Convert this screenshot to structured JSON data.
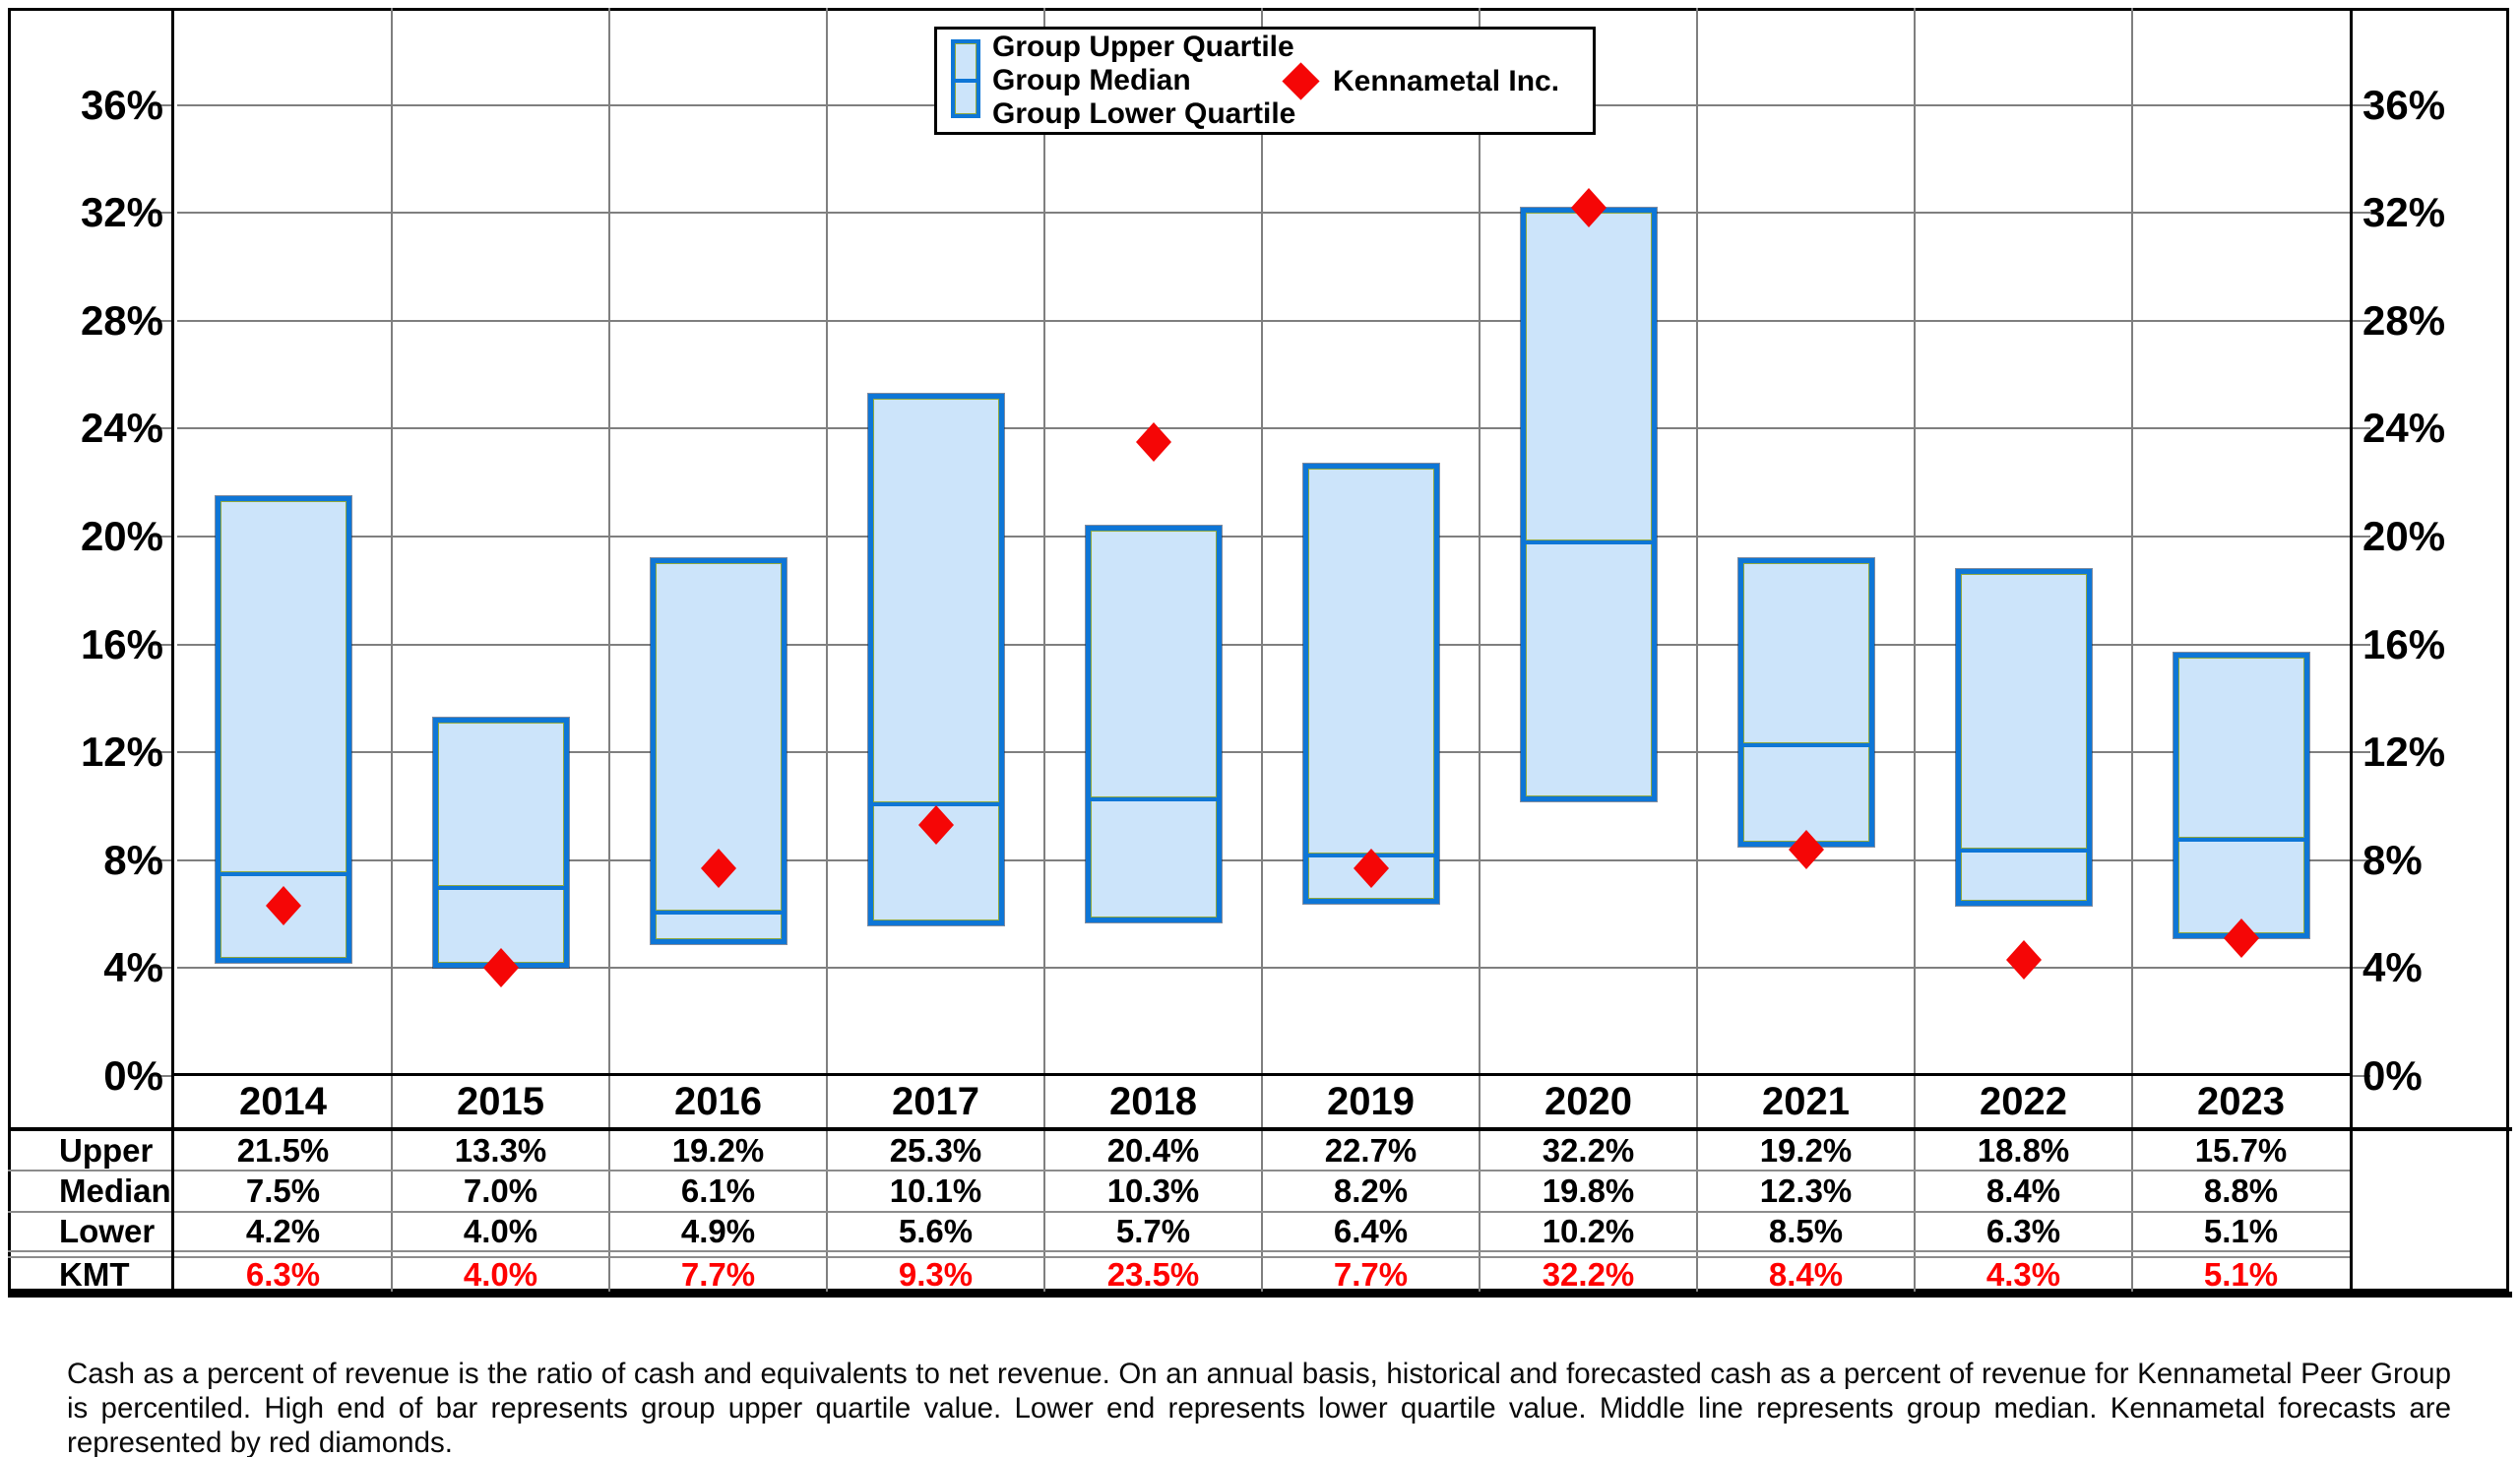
{
  "chart_data": {
    "type": "bar",
    "subtype": "floating-quartile-range",
    "categories": [
      "2014",
      "2015",
      "2016",
      "2017",
      "2018",
      "2019",
      "2020",
      "2021",
      "2022",
      "2023"
    ],
    "series": [
      {
        "name": "Group Upper Quartile",
        "values": [
          21.5,
          13.3,
          19.2,
          25.3,
          20.4,
          22.7,
          32.2,
          19.2,
          18.8,
          15.7
        ]
      },
      {
        "name": "Group Median",
        "values": [
          7.5,
          7.0,
          6.1,
          10.1,
          10.3,
          8.2,
          19.8,
          12.3,
          8.4,
          8.8
        ]
      },
      {
        "name": "Group Lower Quartile",
        "values": [
          4.2,
          4.0,
          4.9,
          5.6,
          5.7,
          6.4,
          10.2,
          8.5,
          6.3,
          5.1
        ]
      },
      {
        "name": "Kennametal Inc.",
        "marker": "diamond",
        "values": [
          6.3,
          4.0,
          7.7,
          9.3,
          23.5,
          7.7,
          32.2,
          8.4,
          4.3,
          5.1
        ]
      }
    ],
    "ylim": [
      0,
      39.6
    ],
    "yticks": [
      0,
      4,
      8,
      12,
      16,
      20,
      24,
      28,
      32,
      36
    ],
    "ytick_labels": [
      "0%",
      "4%",
      "8%",
      "12%",
      "16%",
      "20%",
      "24%",
      "28%",
      "32%",
      "36%"
    ],
    "grid": true,
    "legend_position": "top-center",
    "y_axis_sides": "both"
  },
  "legend": {
    "items": [
      "Group Upper Quartile",
      "Group Median",
      "Group Lower Quartile"
    ],
    "marker_item": "Kennametal Inc."
  },
  "table": {
    "row_labels": [
      "Upper",
      "Median",
      "Lower",
      "KMT"
    ],
    "rows": [
      [
        "21.5%",
        "13.3%",
        "19.2%",
        "25.3%",
        "20.4%",
        "22.7%",
        "32.2%",
        "19.2%",
        "18.8%",
        "15.7%"
      ],
      [
        "7.5%",
        "7.0%",
        "6.1%",
        "10.1%",
        "10.3%",
        "8.2%",
        "19.8%",
        "12.3%",
        "8.4%",
        "8.8%"
      ],
      [
        "4.2%",
        "4.0%",
        "4.9%",
        "5.6%",
        "5.7%",
        "6.4%",
        "10.2%",
        "8.5%",
        "6.3%",
        "5.1%"
      ],
      [
        "6.3%",
        "4.0%",
        "7.7%",
        "9.3%",
        "23.5%",
        "7.7%",
        "32.2%",
        "8.4%",
        "4.3%",
        "5.1%"
      ]
    ]
  },
  "footnote": "Cash as a percent of revenue is the ratio of cash and equivalents to net revenue.  On an annual basis, historical and forecasted cash as a percent of revenue for Kennametal Peer Group is percentiled.  High end of bar represents group upper quartile value.  Lower end represents lower quartile value.  Middle line represents group median.  Kennametal forecasts are represented by red diamonds.",
  "colors": {
    "bar_fill": "#cce4fa",
    "bar_border": "#0e76d6",
    "bar_inner_edge": "#8fa83e",
    "diamond": "#f50606",
    "kmt_text": "#ff0000",
    "gridline": "#7f7f7f",
    "frame": "#000000"
  }
}
